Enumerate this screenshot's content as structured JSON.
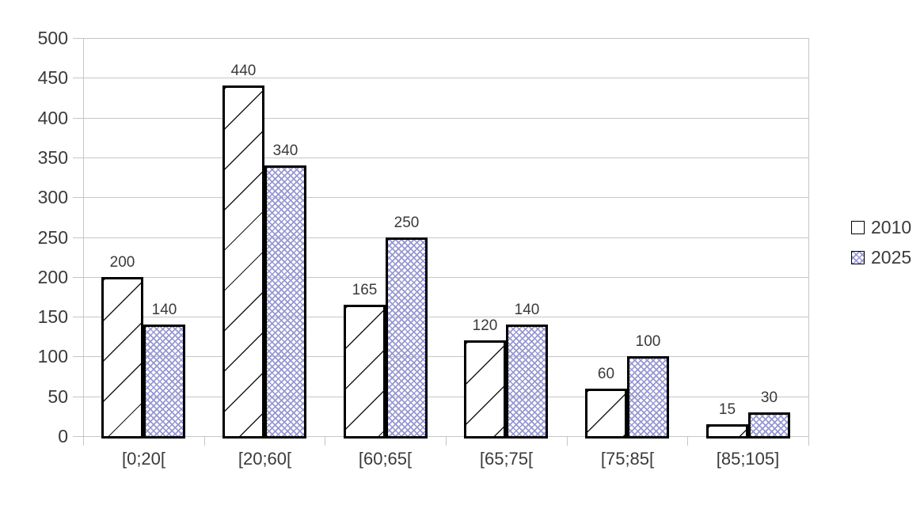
{
  "chart_data": {
    "type": "bar",
    "title": "",
    "xlabel": "",
    "ylabel": "",
    "categories": [
      "[0;20[",
      "[20;60[",
      "[60;65[",
      "[65;75[",
      "[75;85[",
      "[85;105]"
    ],
    "series": [
      {
        "name": "2010",
        "values": [
          200,
          440,
          165,
          120,
          60,
          15
        ],
        "pattern": "diagonal-hatch",
        "pattern_color": "#1a1a1a",
        "fill": "#ffffff"
      },
      {
        "name": "2025",
        "values": [
          140,
          340,
          250,
          140,
          100,
          30
        ],
        "pattern": "crosshatch",
        "pattern_color": "#9797d2",
        "fill": "transparent"
      }
    ],
    "data_labels": true,
    "ylim": [
      0,
      500
    ],
    "yticks": [
      0,
      50,
      100,
      150,
      200,
      250,
      300,
      350,
      400,
      450,
      500
    ],
    "grid": true,
    "legend_position": "right"
  },
  "colors": {
    "grid": "#c6c6c6",
    "text": "#3a3a3a",
    "bar_border": "#000000",
    "hatch_2010": "#1a1a1a",
    "hatch_2025": "#9797d2"
  }
}
